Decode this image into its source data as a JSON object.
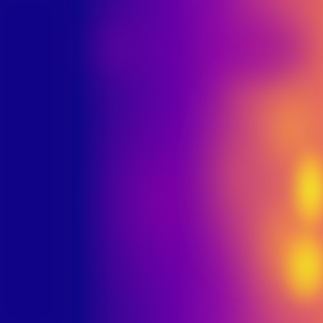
{
  "image": {
    "kind": "depth-map heatmap",
    "colormap": "plasma",
    "colors": {
      "deep_blue": "#0d0887",
      "indigo": "#3a0596",
      "violet": "#6a00a8",
      "purple": "#8f0da4",
      "magenta": "#b12a90",
      "pink": "#cc4778",
      "salmon": "#e16462",
      "orange": "#f1844b",
      "amber": "#fca636",
      "yellow": "#fcce25",
      "bright_yellow": "#f0f921"
    }
  }
}
